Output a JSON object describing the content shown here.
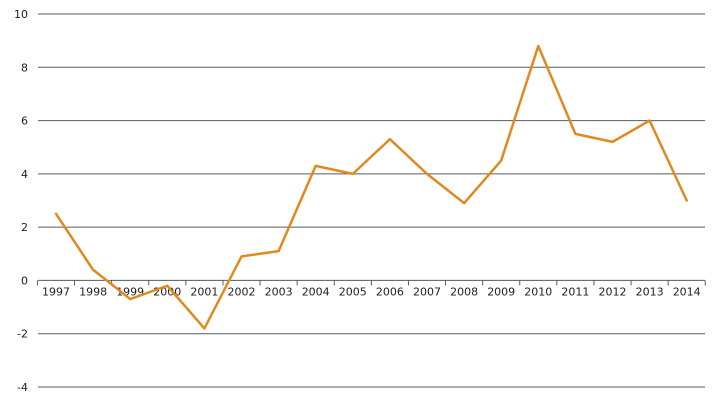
{
  "chart_data": {
    "type": "line",
    "title": "",
    "xlabel": "",
    "ylabel": "",
    "categories": [
      "1997",
      "1998",
      "1999",
      "2000",
      "2001",
      "2002",
      "2003",
      "2004",
      "2005",
      "2006",
      "2007",
      "2008",
      "2009",
      "2010",
      "2011",
      "2012",
      "2013",
      "2014"
    ],
    "y_ticks": [
      "10",
      "8",
      "6",
      "4",
      "2",
      "0",
      "-2",
      "-4"
    ],
    "ylim": [
      -4,
      10
    ],
    "grid": true,
    "legend": "none",
    "series": [
      {
        "color": "#e08a1e",
        "values": [
          2.5,
          0.4,
          -0.7,
          -0.2,
          -1.8,
          0.9,
          1.1,
          4.3,
          4.0,
          5.3,
          4.0,
          2.9,
          4.5,
          8.8,
          5.5,
          5.2,
          6.0,
          3.0
        ]
      }
    ]
  }
}
